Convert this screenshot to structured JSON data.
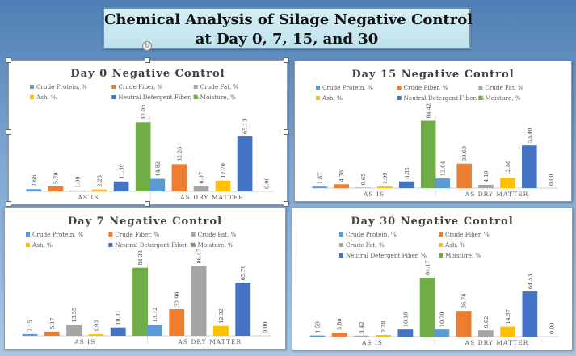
{
  "title": {
    "line1": "Chemical Analysis of Silage Negative Control",
    "line2": "at Day 0, 7, 15, and 30"
  },
  "colors": {
    "Crude Protein, %": "#5b9bd5",
    "Crude Fiber, %": "#ed7d31",
    "Crude Fat, %": "#a5a5a5",
    "Ash, %": "#ffc000",
    "Neutral Detergent Fiber, %": "#4472c4",
    "Moisture, %": "#70ad47"
  },
  "chart_data": [
    {
      "type": "bar",
      "title": "Day  0 Negative Control",
      "legend": [
        "Crude Protein, %",
        "Crude Fiber, %",
        "Crude Fat, %",
        "Ash, %",
        "Neutral Detergent Fiber, %",
        "Moisture, %"
      ],
      "categories": [
        "AS IS",
        "AS DRY MATTER"
      ],
      "series": [
        {
          "name": "Crude Protein, %",
          "values": [
            2.66,
            14.82
          ],
          "labels": [
            "2.66",
            "14.82"
          ]
        },
        {
          "name": "Crude Fiber, %",
          "values": [
            5.79,
            32.26
          ],
          "labels": [
            "5.79",
            "32.26"
          ]
        },
        {
          "name": "Crude Fat, %",
          "values": [
            1.09,
            6.07
          ],
          "labels": [
            "1.09",
            "6.07"
          ]
        },
        {
          "name": "Ash, %",
          "values": [
            2.28,
            12.7
          ],
          "labels": [
            "2.28",
            "12.70"
          ]
        },
        {
          "name": "Neutral Detergent Fiber, %",
          "values": [
            11.69,
            65.13
          ],
          "labels": [
            "11.69",
            "65.13"
          ]
        },
        {
          "name": "Moisture, %",
          "values": [
            82.05,
            0.0
          ],
          "labels": [
            "82.05",
            "0.00"
          ]
        }
      ],
      "legend_position": "top"
    },
    {
      "type": "bar",
      "title": "Day 15 Negative Control",
      "legend": [
        "Crude Protein, %",
        "Crude Fiber, %",
        "Crude Fat, %",
        "Ash, %",
        "Neutral Detergent Fiber, %",
        "Moisture, %"
      ],
      "categories": [
        "AS IS",
        "AS DRY MATTER"
      ],
      "series": [
        {
          "name": "Crude Protein, %",
          "values": [
            1.87,
            12.04
          ],
          "labels": [
            "1.87",
            "12.04"
          ]
        },
        {
          "name": "Crude Fiber, %",
          "values": [
            4.76,
            30.6
          ],
          "labels": [
            "4.76",
            "30.60"
          ]
        },
        {
          "name": "Crude Fat, %",
          "values": [
            0.65,
            4.19
          ],
          "labels": [
            "0.65",
            "4.19"
          ]
        },
        {
          "name": "Ash, %",
          "values": [
            1.99,
            12.8
          ],
          "labels": [
            "1.99",
            "12.80"
          ]
        },
        {
          "name": "Neutral Detergent Fiber, %",
          "values": [
            8.35,
            53.4
          ],
          "labels": [
            "8.35",
            "53.40"
          ]
        },
        {
          "name": "Moisture, %",
          "values": [
            84.42,
            0.0
          ],
          "labels": [
            "84.42",
            "0.00"
          ]
        }
      ],
      "legend_position": "top"
    },
    {
      "type": "bar",
      "title": "Day 7 Negative Control",
      "legend": [
        "Crude Protein, %",
        "Crude Fiber, %",
        "Crude Fat, %",
        "Ash, %",
        "Neutral Detergent Fiber, %",
        "Moisture, %"
      ],
      "categories": [
        "AS IS",
        "AS DRY MATTER"
      ],
      "series": [
        {
          "name": "Crude Protein, %",
          "values": [
            2.15,
            13.72
          ],
          "labels": [
            "2.15",
            "13.72"
          ]
        },
        {
          "name": "Crude Fiber, %",
          "values": [
            5.17,
            32.99
          ],
          "labels": [
            "5.17",
            "32.99"
          ]
        },
        {
          "name": "Crude Fat, %",
          "values": [
            13.55,
            86.47
          ],
          "labels": [
            "13.55",
            "86.47"
          ]
        },
        {
          "name": "Ash, %",
          "values": [
            1.93,
            12.32
          ],
          "labels": [
            "1.93",
            "12.32"
          ]
        },
        {
          "name": "Neutral Detergent Fiber, %",
          "values": [
            10.31,
            65.79
          ],
          "labels": [
            "10.31",
            "65.79"
          ]
        },
        {
          "name": "Moisture, %",
          "values": [
            84.33,
            0.0
          ],
          "labels": [
            "84.33",
            "0.00"
          ]
        }
      ],
      "legend_position": "top"
    },
    {
      "type": "bar",
      "title": "Day  30 Negative Control",
      "legend": [
        "Crude Protein, %",
        "Crude Fiber, %",
        "Crude Fat, %",
        "Ash, %",
        "Neutral Detergent Fiber, %",
        "Moisture, %"
      ],
      "categories": [
        "AS IS",
        "AS DRY MATTER"
      ],
      "series": [
        {
          "name": "Crude Protein, %",
          "values": [
            1.59,
            10.2
          ],
          "labels": [
            "1.59",
            "10.20"
          ]
        },
        {
          "name": "Crude Fiber, %",
          "values": [
            5.8,
            36.76
          ],
          "labels": [
            "5.80",
            "36.76"
          ]
        },
        {
          "name": "Crude Fat, %",
          "values": [
            1.42,
            9.02
          ],
          "labels": [
            "1.42",
            "9.02"
          ]
        },
        {
          "name": "Ash, %",
          "values": [
            2.28,
            14.37
          ],
          "labels": [
            "2.28",
            "14.37"
          ]
        },
        {
          "name": "Neutral Detergent Fiber, %",
          "values": [
            10.18,
            64.53
          ],
          "labels": [
            "10.18",
            "64.53"
          ]
        },
        {
          "name": "Moisture, %",
          "values": [
            84.17,
            0.0
          ],
          "labels": [
            "84.17",
            "0.00"
          ]
        }
      ],
      "legend_position": "top"
    }
  ]
}
